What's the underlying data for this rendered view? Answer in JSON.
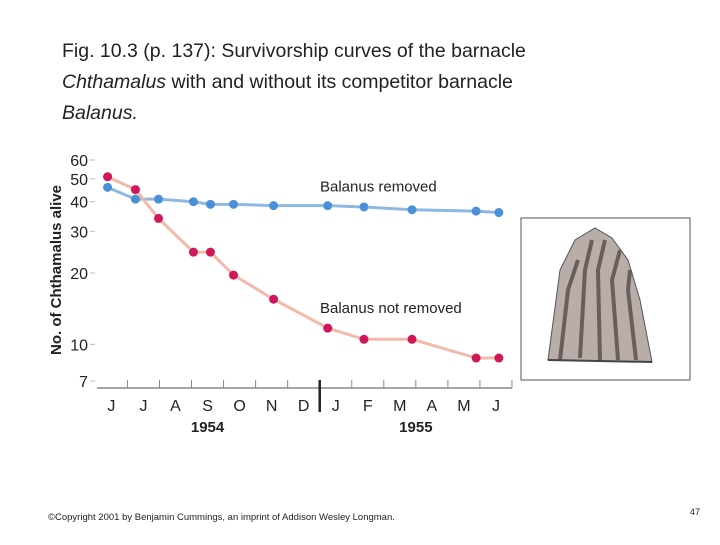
{
  "header": {
    "title_lines": [
      [
        {
          "text": "Fig. 10.3 (p. 137): Survivorship curves of the barnacle",
          "italic": false
        }
      ],
      [
        {
          "text": "Chthamalus",
          "italic": true
        },
        {
          "text": " with and without its competitor barnacle",
          "italic": false
        }
      ],
      [
        {
          "text": "Balanus.",
          "italic": true
        }
      ]
    ]
  },
  "chart_data": {
    "type": "line",
    "ylabel": "No. of Chthamalus alive",
    "ylog": true,
    "ylim": [
      7,
      60
    ],
    "yticks": [
      7,
      10,
      20,
      30,
      40,
      50,
      60
    ],
    "xlim": [
      -0.45,
      12.5
    ],
    "xticks": [
      {
        "value": 0,
        "label": "J"
      },
      {
        "value": 1,
        "label": "J"
      },
      {
        "value": 2,
        "label": "A"
      },
      {
        "value": 3,
        "label": "S"
      },
      {
        "value": 4,
        "label": "O"
      },
      {
        "value": 5,
        "label": "N"
      },
      {
        "value": 6,
        "label": "D"
      },
      {
        "value": 7,
        "label": "J"
      },
      {
        "value": 8,
        "label": "F"
      },
      {
        "value": 9,
        "label": "M"
      },
      {
        "value": 10,
        "label": "A"
      },
      {
        "value": 11,
        "label": "M"
      },
      {
        "value": 12,
        "label": "J"
      }
    ],
    "xgroups": [
      {
        "label": "1954",
        "from": 0,
        "to": 6
      },
      {
        "label": "1955",
        "from": 7,
        "to": 12
      }
    ],
    "x": [
      -0.12,
      0.75,
      1.47,
      2.56,
      3.09,
      3.81,
      5.06,
      6.75,
      7.88,
      9.38,
      11.38,
      12.09
    ],
    "series": [
      {
        "name": "Balanus removed",
        "color": "#4a90d9",
        "line_color": "#8fb8e2",
        "values": [
          46,
          41,
          41,
          40,
          39,
          39,
          38.5,
          38.5,
          38,
          37,
          36.5,
          36
        ]
      },
      {
        "name": "Balanus not removed",
        "color": "#d1165a",
        "line_color": "#f3b9aa",
        "values": [
          51,
          45,
          34,
          24.5,
          24.5,
          19.6,
          15.5,
          11.7,
          10.5,
          10.5,
          8.75,
          8.75
        ]
      }
    ]
  },
  "footer": {
    "copyright": "©Copyright 2001 by Benjamin Cummings, an imprint of Addison Wesley Longman.",
    "page": "47"
  }
}
